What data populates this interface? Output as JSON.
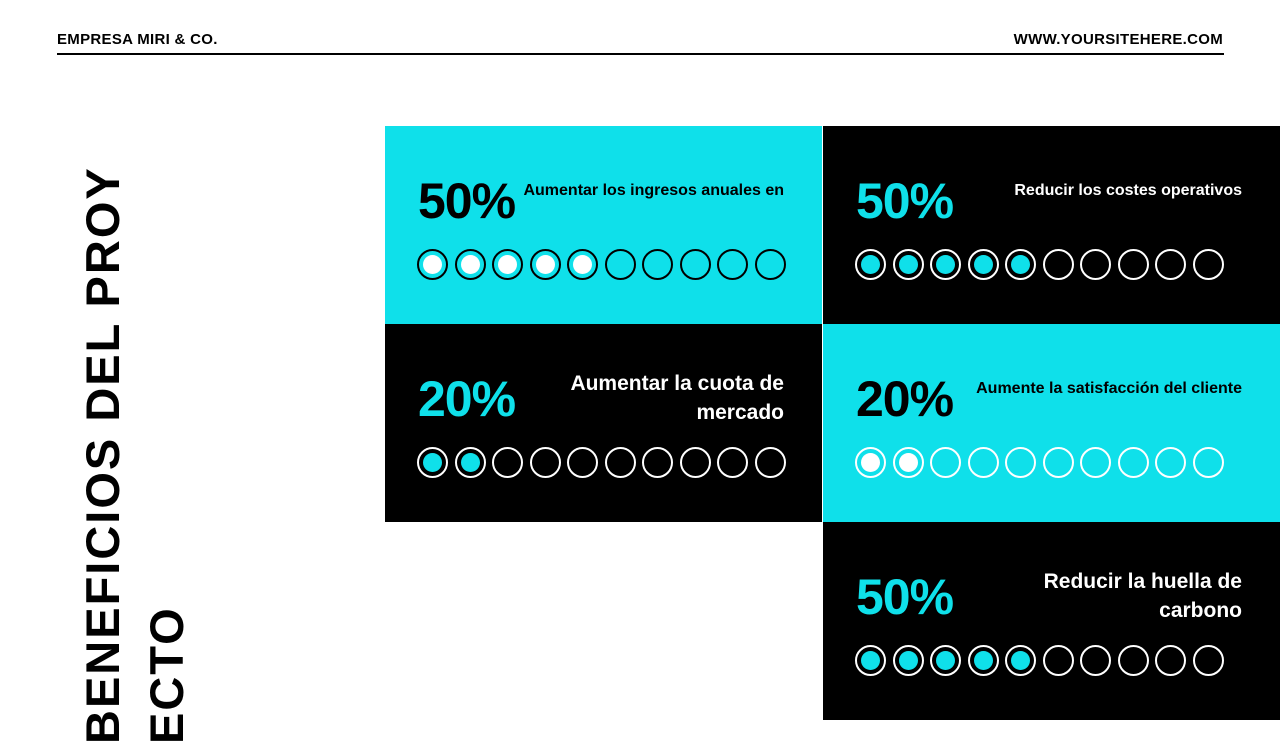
{
  "header": {
    "company": "EMPRESA MIRI & CO.",
    "website": "WWW.YOURSITEHERE.COM"
  },
  "title": {
    "line1": "BENEFICIOS DEL PROY",
    "line2": "ECTO"
  },
  "colors": {
    "cyan": "#0fe0ea",
    "black": "#000000",
    "white": "#ffffff"
  },
  "panels": [
    {
      "percent": "50%",
      "description": "Aumentar los ingresos anuales en",
      "filled": 5,
      "total": 10,
      "theme": "cyan"
    },
    {
      "percent": "50%",
      "description": "Reducir los costes operativos",
      "filled": 5,
      "total": 10,
      "theme": "black"
    },
    {
      "percent": "20%",
      "description": "Aumentar la cuota de mercado",
      "filled": 2,
      "total": 10,
      "theme": "black"
    },
    {
      "percent": "20%",
      "description": "Aumente la satisfacción del cliente",
      "filled": 2,
      "total": 10,
      "theme": "cyan-light"
    },
    {
      "percent": "50%",
      "description": "Reducir la huella de carbono",
      "filled": 5,
      "total": 10,
      "theme": "black"
    }
  ]
}
